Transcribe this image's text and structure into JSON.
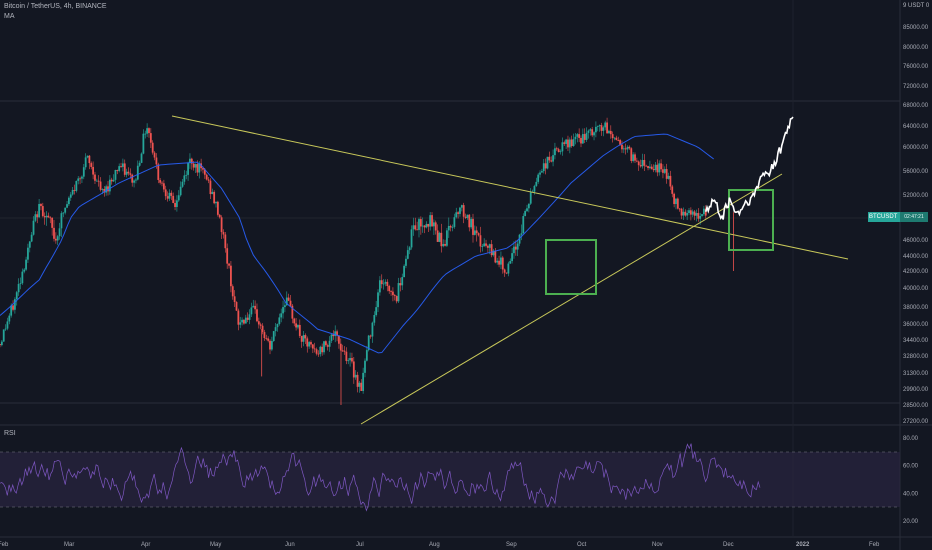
{
  "header": {
    "symbol_line": "Bitcoin / TetherUS, 4h, BINANCE",
    "indicator": "MA"
  },
  "price_axis": {
    "top_label": "9 USDT 0",
    "labels": [
      "85000.00",
      "80000.00",
      "76000.00",
      "72000.00",
      "68000.00",
      "64000.00",
      "60000.00",
      "56000.00",
      "52000.00",
      "48000.00",
      "46000.00",
      "44000.00",
      "42000.00",
      "40000.00",
      "38000.00",
      "36000.00",
      "34400.00",
      "32800.00",
      "31300.00",
      "29900.00",
      "28500.00",
      "27200.00"
    ]
  },
  "rsi_pane": {
    "title": "RSI",
    "labels": [
      "80.00",
      "60.00",
      "40.00",
      "20.00"
    ],
    "band": [
      30,
      70
    ]
  },
  "time_axis": {
    "labels": [
      "Feb",
      "Mar",
      "Apr",
      "May",
      "Jun",
      "Jul",
      "Aug",
      "Sep",
      "Oct",
      "Nov",
      "Dec",
      "2022",
      "Feb"
    ]
  },
  "price_tag": {
    "symbol": "BTCUSDT",
    "price_hidden": "02:47:21"
  },
  "colors": {
    "background": "#131722",
    "grid": "#1e222d",
    "candle_up": "#26a69a",
    "candle_down": "#ef5350",
    "ma_line": "#2962ff",
    "trendline": "#c8c85a",
    "box": "#4caf50",
    "projection": "#ffffff",
    "rsi": "#7e57c2",
    "rsi_band": "#2a2540"
  },
  "chart_data": {
    "type": "candlestick",
    "symbol": "Bitcoin / TetherUS, 4h, BINANCE",
    "x_ticks": [
      "Feb",
      "Mar",
      "Apr",
      "May",
      "Jun",
      "Jul",
      "Aug",
      "Sep",
      "Oct",
      "Nov",
      "Dec",
      "2022",
      "Feb"
    ],
    "y_ticks": [
      85000,
      80000,
      76000,
      72000,
      68000,
      64000,
      60000,
      56000,
      52000,
      48000,
      46000,
      44000,
      42000,
      40000,
      38000,
      36000,
      34400,
      32800,
      31300,
      29900,
      28500,
      27200
    ],
    "price_path": [
      [
        0,
        34000
      ],
      [
        0.02,
        39000
      ],
      [
        0.05,
        50000
      ],
      [
        0.07,
        46000
      ],
      [
        0.09,
        52000
      ],
      [
        0.11,
        58000
      ],
      [
        0.13,
        52000
      ],
      [
        0.15,
        57000
      ],
      [
        0.17,
        54000
      ],
      [
        0.185,
        64500
      ],
      [
        0.2,
        55000
      ],
      [
        0.22,
        50000
      ],
      [
        0.24,
        58000
      ],
      [
        0.26,
        55000
      ],
      [
        0.28,
        47000
      ],
      [
        0.3,
        36000
      ],
      [
        0.32,
        37500
      ],
      [
        0.34,
        33500
      ],
      [
        0.36,
        39000
      ],
      [
        0.38,
        34500
      ],
      [
        0.4,
        33000
      ],
      [
        0.42,
        35000
      ],
      [
        0.44,
        32500
      ],
      [
        0.455,
        29900
      ],
      [
        0.48,
        41000
      ],
      [
        0.5,
        39000
      ],
      [
        0.52,
        47000
      ],
      [
        0.54,
        48000
      ],
      [
        0.56,
        45500
      ],
      [
        0.58,
        50000
      ],
      [
        0.6,
        46000
      ],
      [
        0.62,
        44500
      ],
      [
        0.64,
        42000
      ],
      [
        0.66,
        48000
      ],
      [
        0.68,
        56000
      ],
      [
        0.7,
        59000
      ],
      [
        0.72,
        61000
      ],
      [
        0.74,
        62000
      ],
      [
        0.76,
        64000
      ],
      [
        0.78,
        61000
      ],
      [
        0.8,
        58000
      ],
      [
        0.82,
        57000
      ],
      [
        0.84,
        56000
      ],
      [
        0.85,
        51000
      ],
      [
        0.86,
        49000
      ],
      [
        0.87,
        49500
      ],
      [
        0.88,
        48000
      ],
      [
        0.89,
        49000
      ]
    ],
    "projection_path": [
      [
        0.89,
        49000
      ],
      [
        0.9,
        51000
      ],
      [
        0.91,
        48000
      ],
      [
        0.92,
        51000
      ],
      [
        0.93,
        48500
      ],
      [
        0.94,
        50500
      ],
      [
        0.95,
        51500
      ],
      [
        0.96,
        55000
      ],
      [
        0.97,
        56000
      ],
      [
        0.98,
        58000
      ],
      [
        0.99,
        62000
      ],
      [
        1.0,
        66000
      ]
    ],
    "ma_path": [
      [
        0,
        37000
      ],
      [
        0.05,
        41000
      ],
      [
        0.1,
        50000
      ],
      [
        0.15,
        54000
      ],
      [
        0.2,
        57000
      ],
      [
        0.25,
        57500
      ],
      [
        0.28,
        53000
      ],
      [
        0.32,
        44000
      ],
      [
        0.36,
        38500
      ],
      [
        0.4,
        35500
      ],
      [
        0.44,
        34500
      ],
      [
        0.48,
        33000
      ],
      [
        0.52,
        37000
      ],
      [
        0.56,
        41500
      ],
      [
        0.6,
        44000
      ],
      [
        0.64,
        45000
      ],
      [
        0.68,
        48000
      ],
      [
        0.72,
        54000
      ],
      [
        0.76,
        58500
      ],
      [
        0.8,
        62000
      ],
      [
        0.84,
        62500
      ],
      [
        0.88,
        60000
      ],
      [
        0.9,
        58000
      ]
    ],
    "trendlines": [
      {
        "from": [
          0.185,
          66000
        ],
        "to": [
          1.0,
          44000
        ]
      },
      {
        "from": [
          0.39,
          27000
        ],
        "to": [
          0.92,
          55500
        ]
      }
    ],
    "highlight_boxes": [
      {
        "x": [
          0.61,
          0.67
        ],
        "y": [
          40000,
          46500
        ]
      },
      {
        "x": [
          0.85,
          0.89
        ],
        "y": [
          45000,
          52500
        ]
      }
    ],
    "rsi_range": [
      20,
      80
    ]
  }
}
